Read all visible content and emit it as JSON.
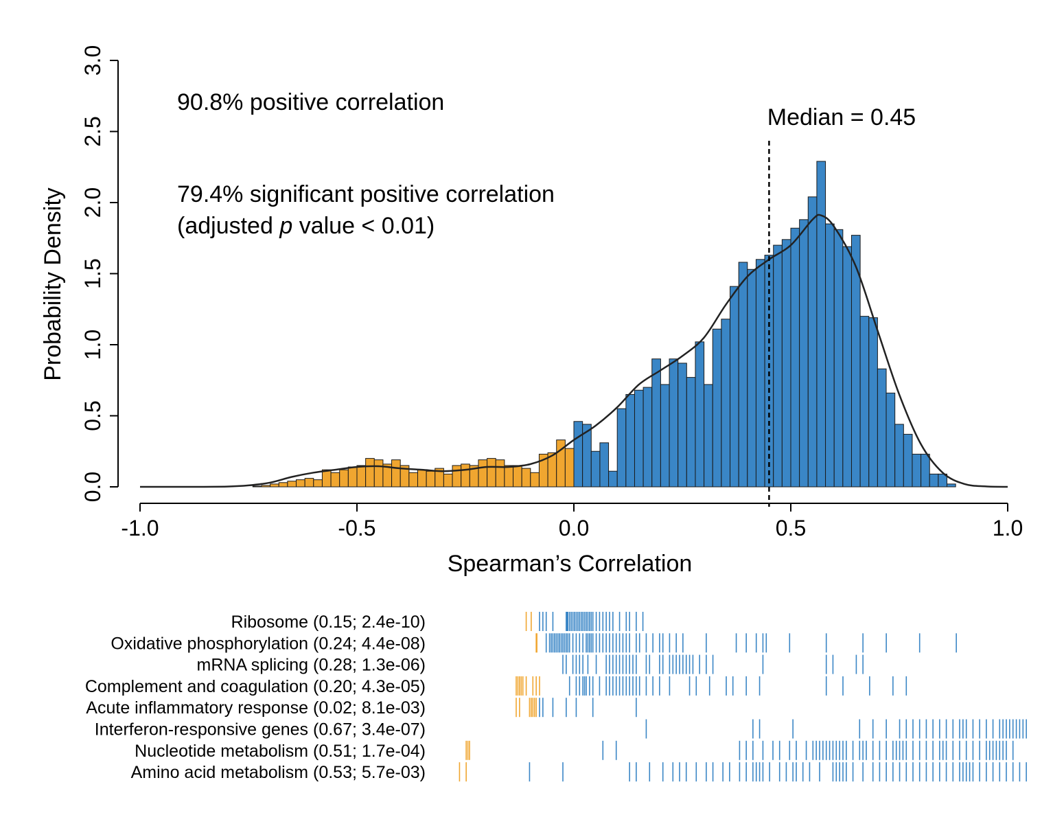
{
  "chart_data": {
    "type": "bar",
    "title": "",
    "xlabel": "Spearman’s Correlation",
    "ylabel": "Probability Density",
    "xlim": [
      -1.0,
      1.0
    ],
    "ylim": [
      0.0,
      3.0
    ],
    "x_ticks": [
      "-1.0",
      "-0.5",
      "0.0",
      "0.5",
      "1.0"
    ],
    "y_ticks": [
      "0.0",
      "0.5",
      "1.0",
      "1.5",
      "2.0",
      "2.5",
      "3.0"
    ],
    "grid": false,
    "colors": {
      "negative": "#f0a630",
      "positive": "#3a86c6",
      "density": "#222222",
      "bar_edge": "#1a1a1a"
    },
    "bin_width": 0.02,
    "bin_starts": [
      -0.74,
      -0.72,
      -0.7,
      -0.68,
      -0.66,
      -0.64,
      -0.62,
      -0.6,
      -0.58,
      -0.56,
      -0.54,
      -0.52,
      -0.5,
      -0.48,
      -0.46,
      -0.44,
      -0.42,
      -0.4,
      -0.38,
      -0.36,
      -0.34,
      -0.32,
      -0.3,
      -0.28,
      -0.26,
      -0.24,
      -0.22,
      -0.2,
      -0.18,
      -0.16,
      -0.14,
      -0.12,
      -0.1,
      -0.08,
      -0.06,
      -0.04,
      -0.02,
      0.0,
      0.02,
      0.04,
      0.06,
      0.08,
      0.1,
      0.12,
      0.14,
      0.16,
      0.18,
      0.2,
      0.22,
      0.24,
      0.26,
      0.28,
      0.3,
      0.32,
      0.34,
      0.36,
      0.38,
      0.4,
      0.42,
      0.44,
      0.46,
      0.48,
      0.5,
      0.52,
      0.54,
      0.56,
      0.58,
      0.6,
      0.62,
      0.64,
      0.66,
      0.68,
      0.7,
      0.72,
      0.74,
      0.76,
      0.78,
      0.8,
      0.82,
      0.84,
      0.86
    ],
    "densities": [
      0.005,
      0.01,
      0.02,
      0.03,
      0.04,
      0.05,
      0.06,
      0.05,
      0.12,
      0.1,
      0.12,
      0.14,
      0.15,
      0.2,
      0.19,
      0.16,
      0.19,
      0.15,
      0.1,
      0.12,
      0.11,
      0.13,
      0.09,
      0.15,
      0.16,
      0.15,
      0.19,
      0.2,
      0.19,
      0.15,
      0.15,
      0.13,
      0.1,
      0.23,
      0.24,
      0.33,
      0.27,
      0.46,
      0.44,
      0.25,
      0.31,
      0.11,
      0.55,
      0.65,
      0.68,
      0.7,
      0.9,
      0.72,
      0.9,
      0.87,
      0.77,
      1.02,
      0.72,
      1.11,
      1.18,
      1.41,
      1.58,
      1.53,
      1.6,
      1.63,
      1.7,
      1.74,
      1.82,
      1.88,
      2.04,
      2.29,
      1.85,
      1.81,
      1.69,
      1.77,
      1.2,
      1.19,
      0.83,
      0.66,
      0.44,
      0.37,
      0.23,
      0.23,
      0.09,
      0.09,
      0.02
    ],
    "density_curve": {
      "x": [
        -1.0,
        -0.9,
        -0.8,
        -0.75,
        -0.7,
        -0.65,
        -0.6,
        -0.55,
        -0.5,
        -0.45,
        -0.4,
        -0.35,
        -0.3,
        -0.25,
        -0.2,
        -0.15,
        -0.1,
        -0.05,
        0.0,
        0.05,
        0.1,
        0.15,
        0.2,
        0.25,
        0.3,
        0.35,
        0.4,
        0.45,
        0.5,
        0.55,
        0.57,
        0.6,
        0.65,
        0.7,
        0.75,
        0.8,
        0.85,
        0.9,
        0.95,
        1.0
      ],
      "y": [
        0.0,
        0.0,
        0.002,
        0.01,
        0.03,
        0.07,
        0.1,
        0.12,
        0.14,
        0.145,
        0.13,
        0.12,
        0.11,
        0.12,
        0.14,
        0.14,
        0.16,
        0.22,
        0.33,
        0.43,
        0.56,
        0.72,
        0.82,
        0.92,
        1.05,
        1.28,
        1.48,
        1.6,
        1.7,
        1.88,
        1.91,
        1.83,
        1.55,
        1.1,
        0.65,
        0.3,
        0.1,
        0.02,
        0.003,
        0.0
      ]
    },
    "median_line": {
      "x": 0.45,
      "label": "Median = 0.45"
    },
    "annotations": {
      "positive": "90.8% positive correlation",
      "significant": "79.4% significant positive correlation",
      "adjusted_pre": "(adjusted ",
      "adjusted_italic": "p",
      "adjusted_post": " value < 0.01)"
    },
    "rug": {
      "xlim": [
        -1.0,
        1.0
      ],
      "rows": [
        {
          "label": "Ribosome (0.15; 2.4e-10)",
          "negative": [
            -0.06,
            -0.045
          ],
          "positive": [
            -0.02,
            -0.01,
            0.0,
            0.02,
            0.06,
            0.062,
            0.065,
            0.07,
            0.075,
            0.08,
            0.085,
            0.09,
            0.095,
            0.1,
            0.105,
            0.11,
            0.115,
            0.12,
            0.125,
            0.13,
            0.135,
            0.14,
            0.15,
            0.16,
            0.17,
            0.18,
            0.19,
            0.2,
            0.22,
            0.24,
            0.25,
            0.27,
            0.29
          ]
        },
        {
          "label": "Oxidative phosphorylation (0.24; 4.4e-08)",
          "negative": [
            -0.03,
            -0.028
          ],
          "positive": [
            0.0,
            0.01,
            0.015,
            0.02,
            0.025,
            0.03,
            0.035,
            0.04,
            0.045,
            0.05,
            0.055,
            0.06,
            0.065,
            0.07,
            0.08,
            0.09,
            0.1,
            0.11,
            0.12,
            0.125,
            0.13,
            0.135,
            0.14,
            0.15,
            0.16,
            0.17,
            0.18,
            0.19,
            0.2,
            0.21,
            0.22,
            0.23,
            0.24,
            0.25,
            0.27,
            0.28,
            0.3,
            0.32,
            0.34,
            0.35,
            0.37,
            0.39,
            0.41,
            0.48,
            0.57,
            0.6,
            0.63,
            0.65,
            0.66,
            0.73,
            0.84,
            0.95,
            1.02,
            1.12,
            1.23
          ]
        },
        {
          "label": "mRNA splicing (0.28; 1.3e-06)",
          "positive": [
            0.05,
            0.06,
            0.08,
            0.09,
            0.1,
            0.11,
            0.125,
            0.15,
            0.18,
            0.19,
            0.2,
            0.21,
            0.22,
            0.23,
            0.24,
            0.25,
            0.26,
            0.27,
            0.3,
            0.31,
            0.34,
            0.35,
            0.37,
            0.38,
            0.39,
            0.4,
            0.41,
            0.42,
            0.43,
            0.44,
            0.46,
            0.48,
            0.5,
            0.65,
            0.84,
            0.86,
            0.93,
            0.95
          ]
        },
        {
          "label": "Complement and coagulation (0.20; 4.3e-05)",
          "negative": [
            -0.09,
            -0.085,
            -0.08,
            -0.075,
            -0.07,
            -0.06,
            -0.04,
            -0.03,
            -0.02
          ],
          "positive": [
            0.07,
            0.09,
            0.1,
            0.11,
            0.115,
            0.12,
            0.13,
            0.14,
            0.16,
            0.18,
            0.19,
            0.2,
            0.21,
            0.22,
            0.23,
            0.24,
            0.25,
            0.26,
            0.27,
            0.28,
            0.3,
            0.32,
            0.34,
            0.37,
            0.43,
            0.45,
            0.49,
            0.54,
            0.56,
            0.6,
            0.64,
            0.84,
            0.89,
            0.97,
            1.04,
            1.08
          ]
        },
        {
          "label": "Acute inflammatory response (0.02; 8.1e-03)",
          "negative": [
            -0.09,
            -0.08,
            -0.05,
            -0.045,
            -0.04,
            -0.035,
            -0.03
          ],
          "positive": [
            -0.02,
            -0.01,
            0.02,
            0.06,
            0.09,
            0.14,
            0.27
          ]
        },
        {
          "label": "Interferon-responsive genes (0.67; 3.4e-07)",
          "positive": [
            0.3,
            0.62,
            0.64,
            0.74,
            0.94,
            0.98,
            1.02,
            1.06,
            1.08,
            1.1,
            1.12,
            1.14,
            1.16,
            1.18,
            1.2,
            1.22,
            1.24,
            1.25,
            1.26,
            1.28,
            1.3,
            1.32,
            1.34,
            1.36,
            1.37,
            1.38,
            1.39,
            1.4,
            1.41,
            1.42,
            1.43,
            1.44
          ]
        },
        {
          "label": "Nucleotide metabolism (0.51; 1.7e-04)",
          "negative": [
            -0.24,
            -0.235,
            -0.23
          ],
          "positive": [
            0.17,
            0.21,
            0.58,
            0.6,
            0.62,
            0.65,
            0.68,
            0.7,
            0.73,
            0.75,
            0.78,
            0.8,
            0.81,
            0.82,
            0.83,
            0.84,
            0.85,
            0.86,
            0.87,
            0.88,
            0.89,
            0.9,
            0.92,
            0.94,
            0.95,
            0.96,
            0.98,
            1.0,
            1.02,
            1.04,
            1.05,
            1.06,
            1.07,
            1.08,
            1.1,
            1.12,
            1.14,
            1.16,
            1.18,
            1.19,
            1.2,
            1.22,
            1.24,
            1.26,
            1.28,
            1.3,
            1.32,
            1.33,
            1.34,
            1.35,
            1.36,
            1.37,
            1.38,
            1.4
          ]
        },
        {
          "label": "Amino acid metabolism (0.53; 5.7e-03)",
          "negative": [
            -0.26,
            -0.24
          ],
          "positive": [
            -0.05,
            0.05,
            0.25,
            0.27,
            0.31,
            0.35,
            0.38,
            0.4,
            0.42,
            0.45,
            0.48,
            0.5,
            0.53,
            0.55,
            0.58,
            0.6,
            0.62,
            0.63,
            0.64,
            0.65,
            0.67,
            0.7,
            0.72,
            0.74,
            0.75,
            0.77,
            0.79,
            0.82,
            0.86,
            0.87,
            0.88,
            0.89,
            0.9,
            0.92,
            0.95,
            0.98,
            1.0,
            1.02,
            1.04,
            1.06,
            1.08,
            1.1,
            1.12,
            1.14,
            1.16,
            1.18,
            1.2,
            1.22,
            1.24,
            1.25,
            1.26,
            1.27,
            1.28,
            1.3,
            1.32,
            1.34,
            1.36,
            1.38,
            1.4,
            1.42,
            1.44
          ]
        }
      ]
    }
  }
}
